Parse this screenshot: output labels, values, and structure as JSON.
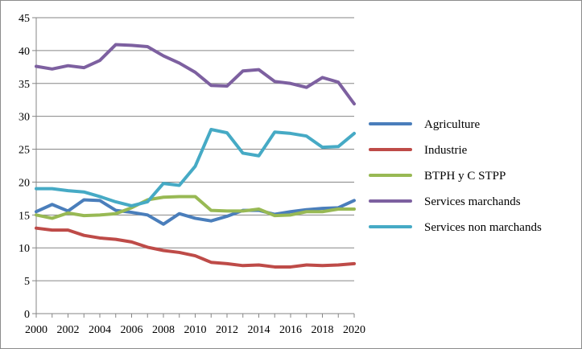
{
  "chart_data": {
    "type": "line",
    "title": "",
    "xlabel": "",
    "ylabel": "",
    "ylim": [
      0,
      45
    ],
    "xlim": [
      2000,
      2020
    ],
    "grid": true,
    "legend_position": "right",
    "x": [
      2000,
      2001,
      2002,
      2003,
      2004,
      2005,
      2006,
      2007,
      2008,
      2009,
      2010,
      2011,
      2012,
      2013,
      2014,
      2015,
      2016,
      2017,
      2018,
      2019,
      2020
    ],
    "x_tick_labels": [
      "2000",
      "2002",
      "2004",
      "2006",
      "2008",
      "2010",
      "2012",
      "2014",
      "2016",
      "2018",
      "2020"
    ],
    "y_tick_labels": [
      "0",
      "5",
      "10",
      "15",
      "20",
      "25",
      "30",
      "35",
      "40",
      "45"
    ],
    "series": [
      {
        "name": "Agriculture",
        "color": "#4a7ebb",
        "values": [
          15.5,
          16.6,
          15.6,
          17.3,
          17.2,
          15.7,
          15.4,
          15.0,
          13.6,
          15.2,
          14.5,
          14.1,
          14.8,
          15.7,
          15.7,
          15.1,
          15.5,
          15.8,
          16.0,
          16.1,
          17.2
        ]
      },
      {
        "name": "Industrie",
        "color": "#be4b48",
        "values": [
          13.0,
          12.7,
          12.7,
          11.9,
          11.5,
          11.3,
          10.9,
          10.1,
          9.6,
          9.3,
          8.8,
          7.8,
          7.6,
          7.3,
          7.4,
          7.1,
          7.1,
          7.4,
          7.3,
          7.4,
          7.6
        ]
      },
      {
        "name": "BTPH y C STPP",
        "color": "#98b954",
        "values": [
          15.0,
          14.5,
          15.3,
          14.9,
          15.0,
          15.2,
          16.1,
          17.3,
          17.7,
          17.8,
          17.8,
          15.7,
          15.6,
          15.6,
          15.9,
          14.9,
          15.0,
          15.5,
          15.5,
          15.9,
          15.9
        ]
      },
      {
        "name": "Services marchands",
        "color": "#7d60a0",
        "values": [
          37.6,
          37.2,
          37.7,
          37.4,
          38.5,
          40.9,
          40.8,
          40.6,
          39.2,
          38.1,
          36.7,
          34.7,
          34.6,
          36.9,
          37.1,
          35.3,
          35.0,
          34.4,
          35.9,
          35.2,
          31.9
        ]
      },
      {
        "name": "Services non marchands",
        "color": "#46aac5",
        "values": [
          19.0,
          19.0,
          18.7,
          18.5,
          17.8,
          17.0,
          16.4,
          17.0,
          19.8,
          19.5,
          22.4,
          28.0,
          27.5,
          24.4,
          24.0,
          27.6,
          27.4,
          27.0,
          25.3,
          25.4,
          27.4
        ]
      }
    ]
  }
}
